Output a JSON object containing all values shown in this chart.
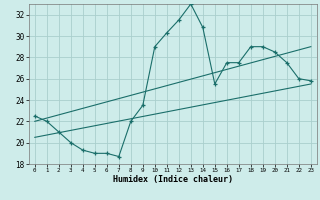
{
  "xlabel": "Humidex (Indice chaleur)",
  "background_color": "#ceecea",
  "grid_color": "#aacfcd",
  "line_color": "#1a6e6a",
  "xlim": [
    -0.5,
    23.5
  ],
  "ylim": [
    18,
    33
  ],
  "yticks": [
    18,
    20,
    22,
    24,
    26,
    28,
    30,
    32
  ],
  "xticks": [
    0,
    1,
    2,
    3,
    4,
    5,
    6,
    7,
    8,
    9,
    10,
    11,
    12,
    13,
    14,
    15,
    16,
    17,
    18,
    19,
    20,
    21,
    22,
    23
  ],
  "humidex_values": [
    22.5,
    22.0,
    21.0,
    20.0,
    19.3,
    19.0,
    19.0,
    18.7,
    22.0,
    23.5,
    29.0,
    30.3,
    31.5,
    33.0,
    30.8,
    25.5,
    27.5,
    27.5,
    29.0,
    29.0,
    28.5,
    27.5,
    26.0,
    25.8
  ],
  "trend1_x": [
    0,
    23
  ],
  "trend1_y": [
    22.0,
    29.0
  ],
  "trend2_x": [
    0,
    23
  ],
  "trend2_y": [
    20.5,
    25.5
  ]
}
